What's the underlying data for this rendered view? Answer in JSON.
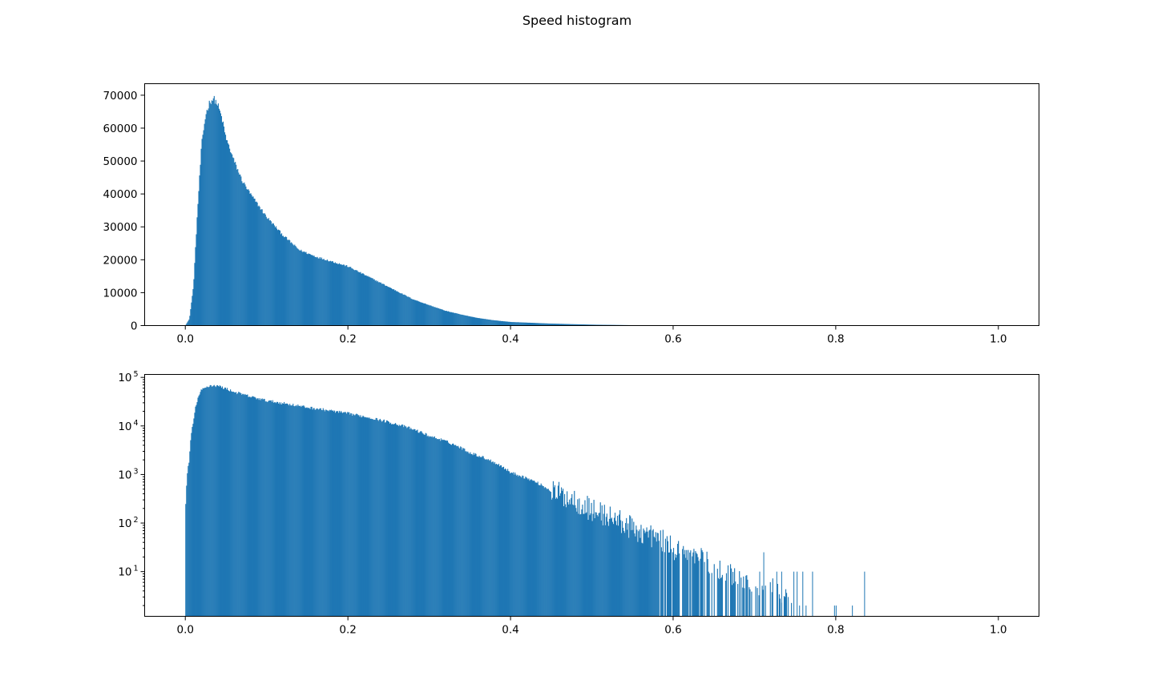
{
  "figure": {
    "suptitle": "Speed histogram"
  },
  "colors": {
    "bar_fill": "#1f77b4",
    "axis": "#000000",
    "background": "#ffffff"
  },
  "chart_data": [
    {
      "type": "bar",
      "yscale": "linear",
      "title": "",
      "xlabel": "",
      "ylabel": "",
      "xlim": [
        -0.05,
        1.05
      ],
      "ylim": [
        0,
        73500
      ],
      "grid": false,
      "legend": "none",
      "bin_width": 0.001,
      "x_ticks": [
        0.0,
        0.2,
        0.4,
        0.6,
        0.8,
        1.0
      ],
      "x_tick_labels": [
        "0.0",
        "0.2",
        "0.4",
        "0.6",
        "0.8",
        "1.0"
      ],
      "y_ticks": [
        0,
        10000,
        20000,
        30000,
        40000,
        50000,
        60000,
        70000
      ],
      "y_tick_labels": [
        "0",
        "10000",
        "20000",
        "30000",
        "40000",
        "50000",
        "60000",
        "70000"
      ],
      "bins": {
        "x": [
          0.0,
          0.005,
          0.01,
          0.015,
          0.02,
          0.025,
          0.03,
          0.035,
          0.04,
          0.045,
          0.05,
          0.06,
          0.07,
          0.08,
          0.09,
          0.1,
          0.12,
          0.14,
          0.16,
          0.18,
          0.2,
          0.22,
          0.24,
          0.26,
          0.28,
          0.3,
          0.32,
          0.34,
          0.36,
          0.38,
          0.4,
          0.45,
          0.5,
          0.55,
          0.58,
          0.6
        ],
        "counts": [
          0,
          2000,
          12000,
          35000,
          55000,
          64000,
          68000,
          69000,
          67000,
          63000,
          57000,
          50000,
          44000,
          40000,
          36500,
          33000,
          27500,
          23000,
          21000,
          19500,
          18000,
          15500,
          13000,
          10500,
          8000,
          6200,
          4500,
          3300,
          2300,
          1600,
          1100,
          600,
          280,
          120,
          40,
          0
        ]
      }
    },
    {
      "type": "bar",
      "yscale": "log",
      "title": "",
      "xlabel": "",
      "ylabel": "",
      "xlim": [
        -0.05,
        1.05
      ],
      "ylim": [
        1.2,
        115000
      ],
      "grid": false,
      "legend": "none",
      "bin_width": 0.001,
      "x_ticks": [
        0.0,
        0.2,
        0.4,
        0.6,
        0.8,
        1.0
      ],
      "x_tick_labels": [
        "0.0",
        "0.2",
        "0.4",
        "0.6",
        "0.8",
        "1.0"
      ],
      "y_ticks": [
        10,
        100,
        1000,
        10000,
        100000
      ],
      "y_tick_labels": [
        {
          "base": "10",
          "exp": "1"
        },
        {
          "base": "10",
          "exp": "2"
        },
        {
          "base": "10",
          "exp": "3"
        },
        {
          "base": "10",
          "exp": "4"
        },
        {
          "base": "10",
          "exp": "5"
        }
      ],
      "bins": {
        "x": [
          0.0,
          0.005,
          0.01,
          0.015,
          0.02,
          0.03,
          0.04,
          0.06,
          0.08,
          0.1,
          0.15,
          0.2,
          0.25,
          0.3,
          0.35,
          0.4,
          0.45,
          0.5,
          0.55,
          0.6,
          0.65,
          0.7,
          0.75
        ],
        "counts": [
          40,
          2000,
          12000,
          35000,
          55000,
          68000,
          67000,
          50000,
          40000,
          33000,
          24000,
          18000,
          12000,
          6200,
          2800,
          1100,
          450,
          180,
          75,
          30,
          12,
          5,
          3
        ]
      },
      "sparse_bars": [
        {
          "x": 0.706,
          "count": 10
        },
        {
          "x": 0.711,
          "count": 25
        },
        {
          "x": 0.727,
          "count": 10
        },
        {
          "x": 0.733,
          "count": 10
        },
        {
          "x": 0.741,
          "count": 3
        },
        {
          "x": 0.748,
          "count": 10
        },
        {
          "x": 0.752,
          "count": 10
        },
        {
          "x": 0.755,
          "count": 2
        },
        {
          "x": 0.759,
          "count": 10
        },
        {
          "x": 0.763,
          "count": 2
        },
        {
          "x": 0.771,
          "count": 10
        },
        {
          "x": 0.798,
          "count": 2
        },
        {
          "x": 0.8,
          "count": 2
        },
        {
          "x": 0.82,
          "count": 2
        },
        {
          "x": 0.835,
          "count": 10
        }
      ]
    }
  ]
}
